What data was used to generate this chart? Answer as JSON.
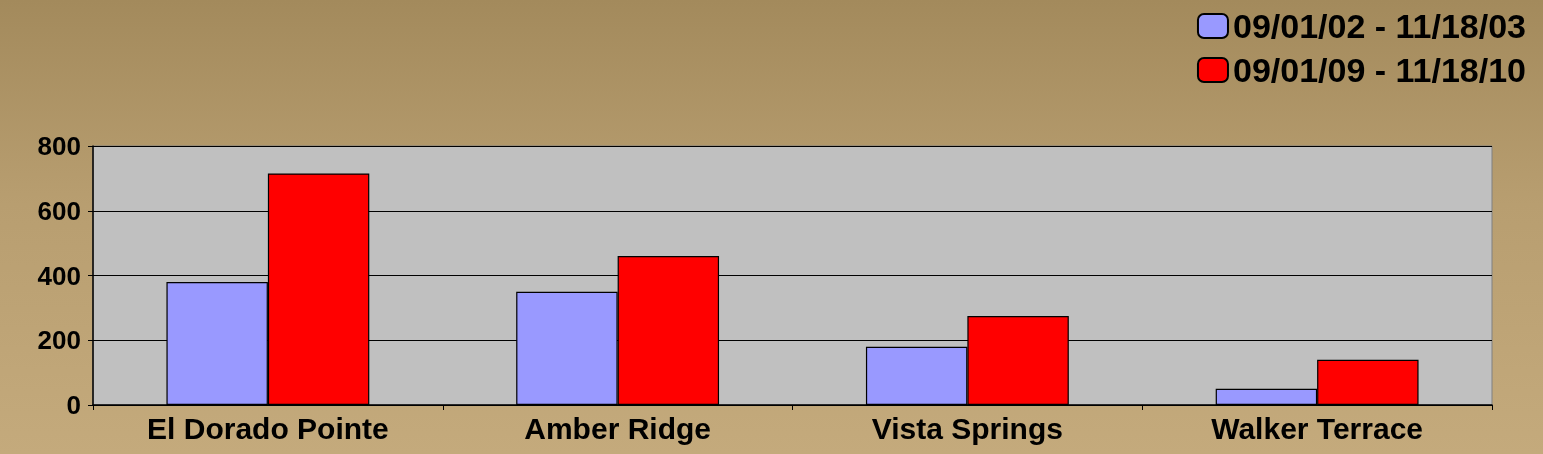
{
  "chart_data": {
    "type": "bar",
    "categories": [
      "El Dorado Pointe",
      "Amber Ridge",
      "Vista Springs",
      "Walker Terrace"
    ],
    "series": [
      {
        "name": "09/01/02 - 11/18/03",
        "color": "#9999ff",
        "values": [
          380,
          350,
          180,
          50
        ]
      },
      {
        "name": "09/01/09 - 11/18/10",
        "color": "#ff0000",
        "values": [
          715,
          460,
          275,
          140
        ]
      }
    ],
    "ylim": [
      0,
      800
    ],
    "yticks": [
      0,
      200,
      400,
      600,
      800
    ],
    "grid": "y",
    "legend": "top right"
  }
}
